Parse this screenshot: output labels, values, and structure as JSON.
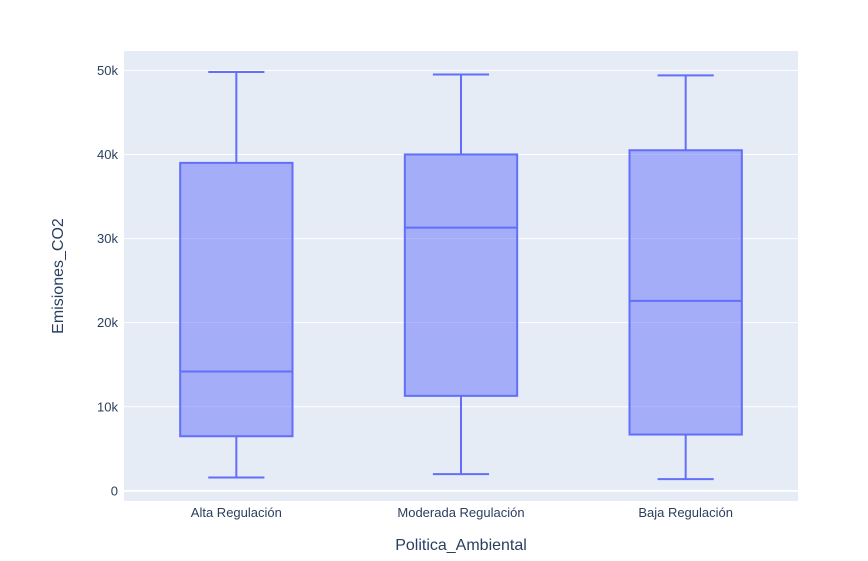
{
  "chart_data": {
    "type": "box",
    "xlabel": "Politica_Ambiental",
    "ylabel": "Emisiones_CO2",
    "ylim": [
      -1200,
      52300
    ],
    "yticks": [
      {
        "value": 0,
        "label": "0"
      },
      {
        "value": 10000,
        "label": "10k"
      },
      {
        "value": 20000,
        "label": "20k"
      },
      {
        "value": 30000,
        "label": "30k"
      },
      {
        "value": 40000,
        "label": "40k"
      },
      {
        "value": 50000,
        "label": "50k"
      }
    ],
    "categories": [
      "Alta Regulación",
      "Moderada Regulación",
      "Baja Regulación"
    ],
    "boxes": [
      {
        "category": "Alta Regulación",
        "min": 1600,
        "q1": 6500,
        "median": 14200,
        "q3": 39000,
        "max": 49800
      },
      {
        "category": "Moderada Regulación",
        "min": 2000,
        "q1": 11300,
        "median": 31300,
        "q3": 40000,
        "max": 49500
      },
      {
        "category": "Baja Regulación",
        "min": 1400,
        "q1": 6700,
        "median": 22600,
        "q3": 40500,
        "max": 49400
      }
    ],
    "grid": true,
    "colors": {
      "plot_bg": "#e5ecf6",
      "grid": "#ffffff",
      "box_fill": "rgba(99,110,250,0.5)",
      "box_line": "#636efa",
      "text": "#2a3f5f"
    }
  }
}
